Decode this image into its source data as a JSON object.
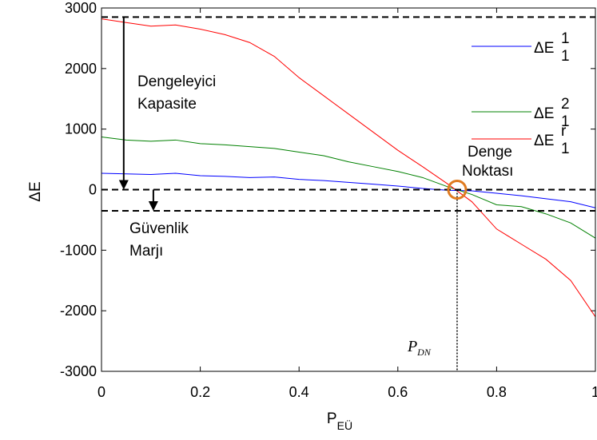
{
  "chart_data": {
    "type": "line",
    "x_label": "P",
    "x_label_sub": "EÜ",
    "y_label": "ΔE",
    "x": [
      0,
      0.05,
      0.1,
      0.15,
      0.2,
      0.25,
      0.3,
      0.35,
      0.4,
      0.45,
      0.5,
      0.55,
      0.6,
      0.65,
      0.7,
      0.75,
      0.8,
      0.85,
      0.9,
      0.95,
      1
    ],
    "series": [
      {
        "name": "ΔE",
        "sup": "1",
        "sub": "1",
        "color": "#0000ff",
        "values": [
          270,
          260,
          250,
          270,
          230,
          220,
          200,
          210,
          170,
          150,
          120,
          90,
          60,
          20,
          -10,
          -20,
          -60,
          -100,
          -150,
          -200,
          -300
        ]
      },
      {
        "name": "ΔE",
        "sup": "2",
        "sub": "1",
        "color": "#008000",
        "values": [
          870,
          820,
          800,
          820,
          760,
          740,
          710,
          680,
          620,
          560,
          460,
          380,
          300,
          200,
          50,
          -80,
          -250,
          -280,
          -400,
          -550,
          -800
        ]
      },
      {
        "name": "ΔE",
        "sup": "r",
        "sub": "1",
        "color": "#ff0000",
        "values": [
          2820,
          2760,
          2700,
          2720,
          2650,
          2560,
          2430,
          2200,
          1850,
          1550,
          1250,
          950,
          650,
          380,
          100,
          -200,
          -650,
          -900,
          -1150,
          -1500,
          -2100
        ]
      }
    ],
    "xlim": [
      0,
      1
    ],
    "xticks": [
      0,
      0.2,
      0.4,
      0.6,
      0.8,
      1
    ],
    "ylim": [
      -3000,
      3000
    ],
    "yticks": [
      -3000,
      -2000,
      -1000,
      0,
      1000,
      2000,
      3000
    ],
    "hlines": [
      2850,
      0,
      -350
    ],
    "vline": {
      "x": 0.72,
      "label": "P",
      "label_sub": "DN"
    },
    "circle": {
      "x": 0.72,
      "y": 0,
      "color": "#e07b20"
    },
    "arrows": [
      {
        "x": 0.045,
        "from": 2850,
        "to": 0,
        "label": [
          "Dengeleyici",
          "Kapasite"
        ]
      },
      {
        "x": 0.105,
        "from": 0,
        "to": -350,
        "label": [
          "Güvenlik",
          "Marjı"
        ]
      }
    ],
    "point_label": [
      "Denge",
      "Noktası"
    ]
  }
}
